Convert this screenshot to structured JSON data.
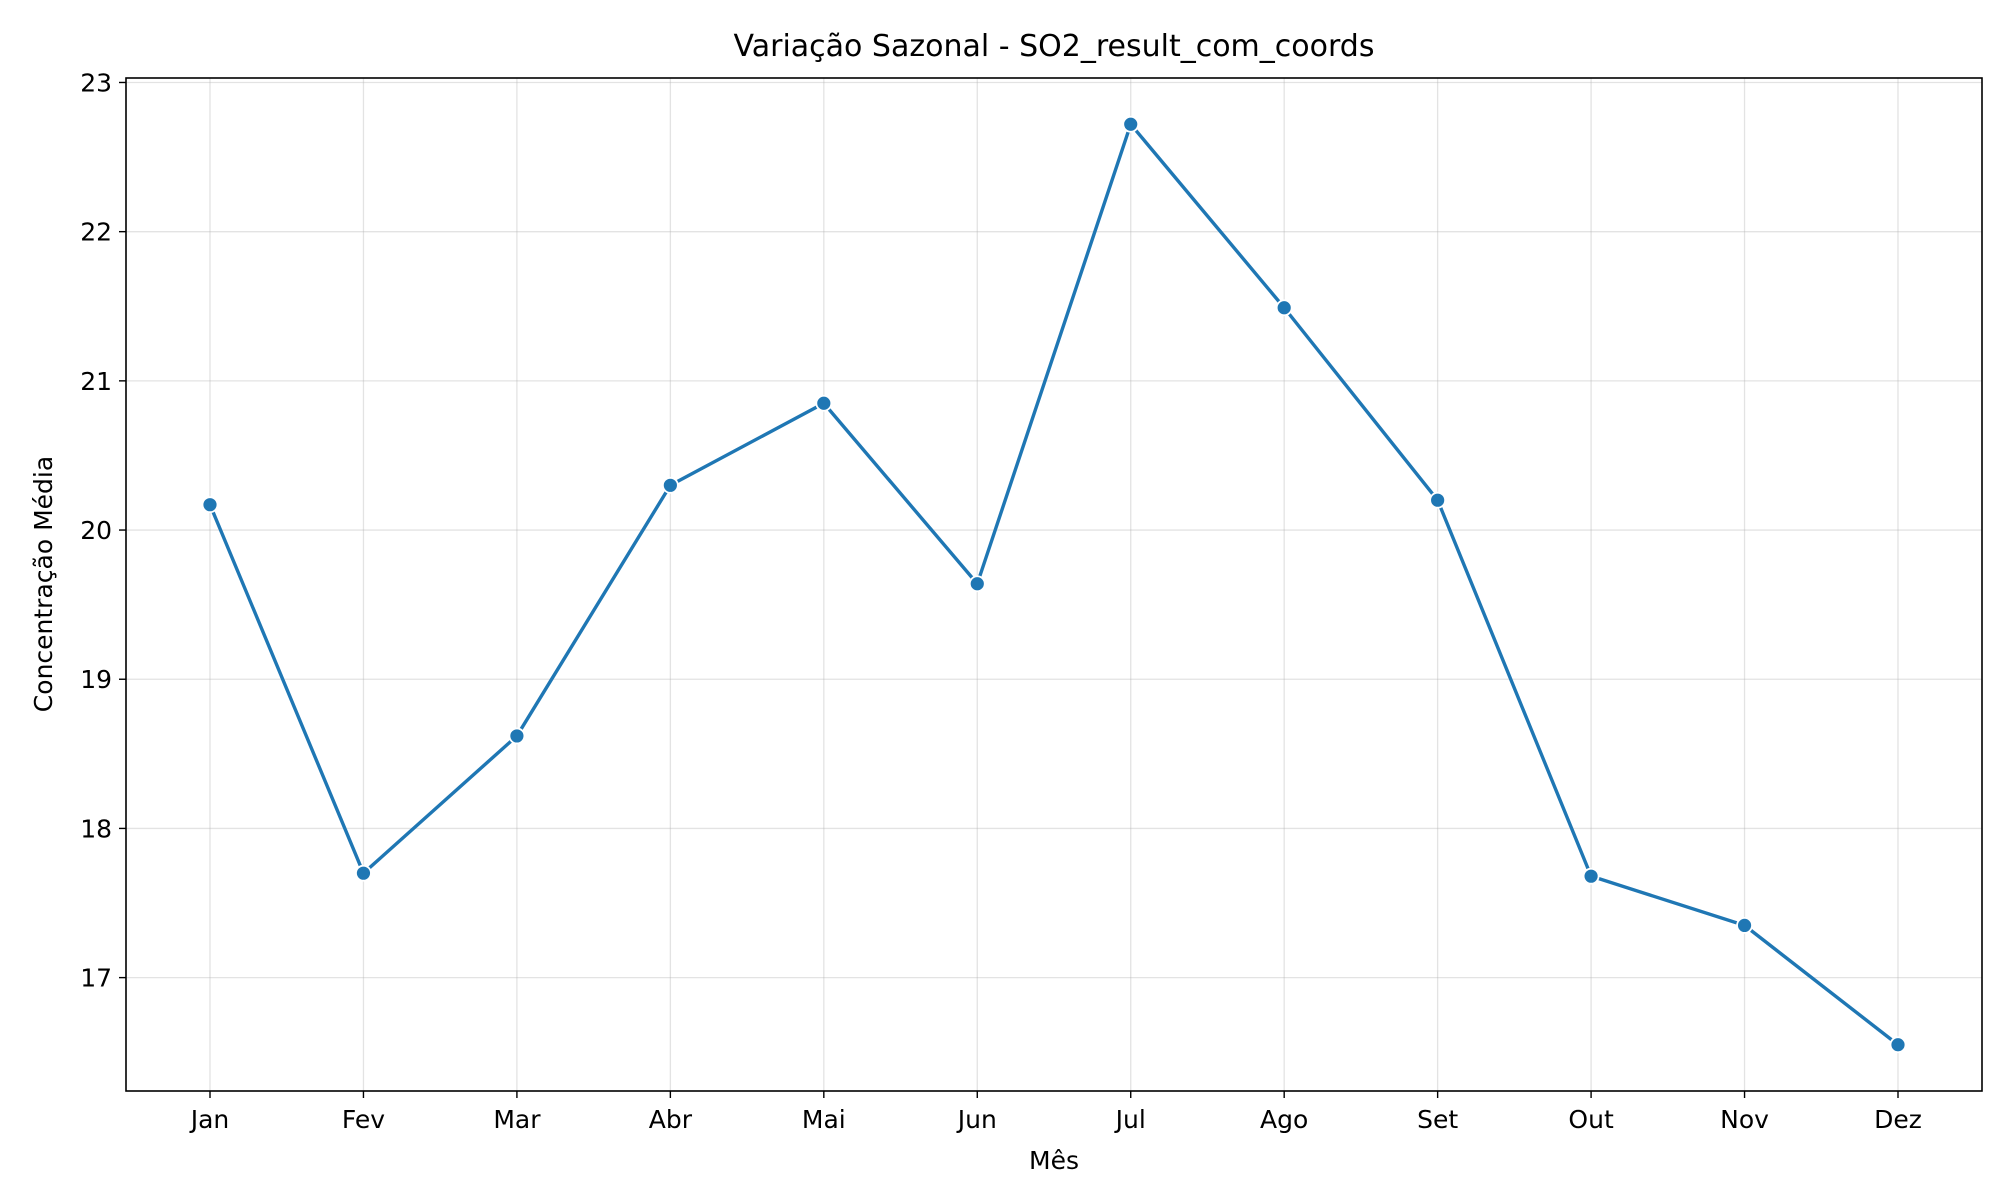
{
  "chart_data": {
    "type": "line",
    "title": "Variação Sazonal - SO2_result_com_coords",
    "xlabel": "Mês",
    "ylabel": "Concentração Média",
    "categories": [
      "Jan",
      "Fev",
      "Mar",
      "Abr",
      "Mai",
      "Jun",
      "Jul",
      "Ago",
      "Set",
      "Out",
      "Nov",
      "Dez"
    ],
    "values": [
      20.17,
      17.7,
      18.62,
      20.3,
      20.85,
      19.64,
      22.72,
      21.49,
      20.2,
      17.68,
      17.35,
      16.55
    ],
    "ylim": [
      16.24,
      23.03
    ],
    "yticks": [
      17,
      18,
      19,
      20,
      21,
      22,
      23
    ],
    "grid": true,
    "legend": "none",
    "colors": {
      "line": "#1f77b4",
      "marker_edge": "#ffffff"
    }
  }
}
